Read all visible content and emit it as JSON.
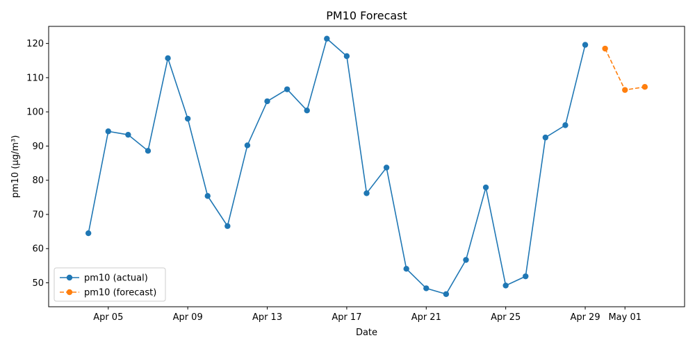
{
  "chart_data": {
    "type": "line",
    "title": "PM10 Forecast",
    "xlabel": "Date",
    "ylabel": "pm10 (µg/m³)",
    "x_tick_labels": [
      "Apr 05",
      "Apr 09",
      "Apr 13",
      "Apr 17",
      "Apr 21",
      "Apr 25",
      "Apr 29",
      "May 01"
    ],
    "x_tick_dates": [
      "2024-04-05",
      "2024-04-09",
      "2024-04-13",
      "2024-04-17",
      "2024-04-21",
      "2024-04-25",
      "2024-04-29",
      "2024-05-01"
    ],
    "xlim": [
      "2024-04-02",
      "2024-05-04"
    ],
    "y_ticks": [
      50,
      60,
      70,
      80,
      90,
      100,
      110,
      120
    ],
    "y_tick_labels": [
      "50",
      "60",
      "70",
      "80",
      "90",
      "100",
      "110",
      "120"
    ],
    "ylim": [
      43,
      125
    ],
    "grid": false,
    "legend_position": "lower-left",
    "series": [
      {
        "name": "pm10 (actual)",
        "color": "#1f77b4",
        "line_style": "solid",
        "marker": "circle",
        "points": [
          {
            "x": "2024-04-04",
            "y": 64.5
          },
          {
            "x": "2024-04-05",
            "y": 94.3
          },
          {
            "x": "2024-04-06",
            "y": 93.3
          },
          {
            "x": "2024-04-07",
            "y": 88.6
          },
          {
            "x": "2024-04-08",
            "y": 115.7
          },
          {
            "x": "2024-04-09",
            "y": 98.0
          },
          {
            "x": "2024-04-10",
            "y": 75.4
          },
          {
            "x": "2024-04-11",
            "y": 66.6
          },
          {
            "x": "2024-04-12",
            "y": 90.2
          },
          {
            "x": "2024-04-13",
            "y": 103.1
          },
          {
            "x": "2024-04-14",
            "y": 106.6
          },
          {
            "x": "2024-04-15",
            "y": 100.4
          },
          {
            "x": "2024-04-16",
            "y": 121.4
          },
          {
            "x": "2024-04-17",
            "y": 116.3
          },
          {
            "x": "2024-04-18",
            "y": 76.2
          },
          {
            "x": "2024-04-19",
            "y": 83.7
          },
          {
            "x": "2024-04-20",
            "y": 54.1
          },
          {
            "x": "2024-04-21",
            "y": 48.4
          },
          {
            "x": "2024-04-22",
            "y": 46.7
          },
          {
            "x": "2024-04-23",
            "y": 56.7
          },
          {
            "x": "2024-04-24",
            "y": 77.9
          },
          {
            "x": "2024-04-25",
            "y": 49.2
          },
          {
            "x": "2024-04-26",
            "y": 51.9
          },
          {
            "x": "2024-04-27",
            "y": 92.5
          },
          {
            "x": "2024-04-28",
            "y": 96.1
          },
          {
            "x": "2024-04-29",
            "y": 119.6
          }
        ]
      },
      {
        "name": "pm10 (forecast)",
        "color": "#ff7f0e",
        "line_style": "dashed",
        "marker": "circle",
        "points": [
          {
            "x": "2024-04-30",
            "y": 118.5
          },
          {
            "x": "2024-05-01",
            "y": 106.4
          },
          {
            "x": "2024-05-02",
            "y": 107.3
          }
        ]
      }
    ]
  }
}
